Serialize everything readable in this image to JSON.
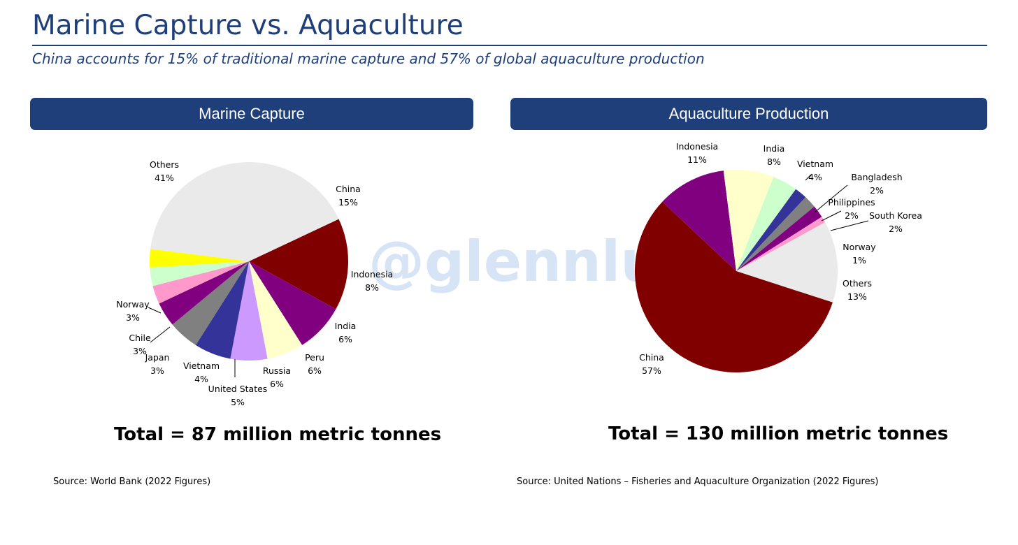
{
  "page": {
    "title": "Marine Capture vs. Aquaculture",
    "subtitle": "China accounts for 15% of traditional marine capture and 57% of global aquaculture production",
    "watermark": "@glennluk"
  },
  "panels": {
    "left": {
      "header": "Marine Capture",
      "total": "Total = 87 million metric tonnes",
      "source": "Source: World Bank (2022 Figures)"
    },
    "right": {
      "header": "Aquaculture Production",
      "total": "Total = 130 million metric tonnes",
      "source": "Source: United Nations – Fisheries and Aquaculture Organization (2022 Figures)"
    }
  },
  "chart_data": [
    {
      "type": "pie",
      "title": "Marine Capture",
      "slices": [
        {
          "label": "China",
          "value": 15,
          "text": "15%",
          "color": "#800000"
        },
        {
          "label": "Indonesia",
          "value": 8,
          "text": "8%",
          "color": "#800080"
        },
        {
          "label": "India",
          "value": 6,
          "text": "6%",
          "color": "#ffffcc"
        },
        {
          "label": "Peru",
          "value": 6,
          "text": "6%",
          "color": "#cc99ff"
        },
        {
          "label": "Russia",
          "value": 6,
          "text": "6%",
          "color": "#333399"
        },
        {
          "label": "United States",
          "value": 5,
          "text": "5%",
          "color": "#808080"
        },
        {
          "label": "Vietnam",
          "value": 4,
          "text": "4%",
          "color": "#800080"
        },
        {
          "label": "Japan",
          "value": 3,
          "text": "3%",
          "color": "#ff99cc"
        },
        {
          "label": "Chile",
          "value": 3,
          "text": "3%",
          "color": "#ccffcc"
        },
        {
          "label": "Norway",
          "value": 3,
          "text": "3%",
          "color": "#ffff00"
        },
        {
          "label": "Others",
          "value": 41,
          "text": "41%",
          "color": "#eaeaea"
        }
      ]
    },
    {
      "type": "pie",
      "title": "Aquaculture Production",
      "slices": [
        {
          "label": "Indonesia",
          "value": 11,
          "text": "11%",
          "color": "#800080"
        },
        {
          "label": "India",
          "value": 8,
          "text": "8%",
          "color": "#ffffcc"
        },
        {
          "label": "Vietnam",
          "value": 4,
          "text": "4%",
          "color": "#ccffcc"
        },
        {
          "label": "Bangladesh",
          "value": 2,
          "text": "2%",
          "color": "#333399"
        },
        {
          "label": "Philippines",
          "value": 2,
          "text": "2%",
          "color": "#808080"
        },
        {
          "label": "South Korea",
          "value": 2,
          "text": "2%",
          "color": "#800080"
        },
        {
          "label": "Norway",
          "value": 1,
          "text": "1%",
          "color": "#ff99cc"
        },
        {
          "label": "Others",
          "value": 13,
          "text": "13%",
          "color": "#eaeaea"
        },
        {
          "label": "China",
          "value": 57,
          "text": "57%",
          "color": "#800000"
        }
      ]
    }
  ]
}
